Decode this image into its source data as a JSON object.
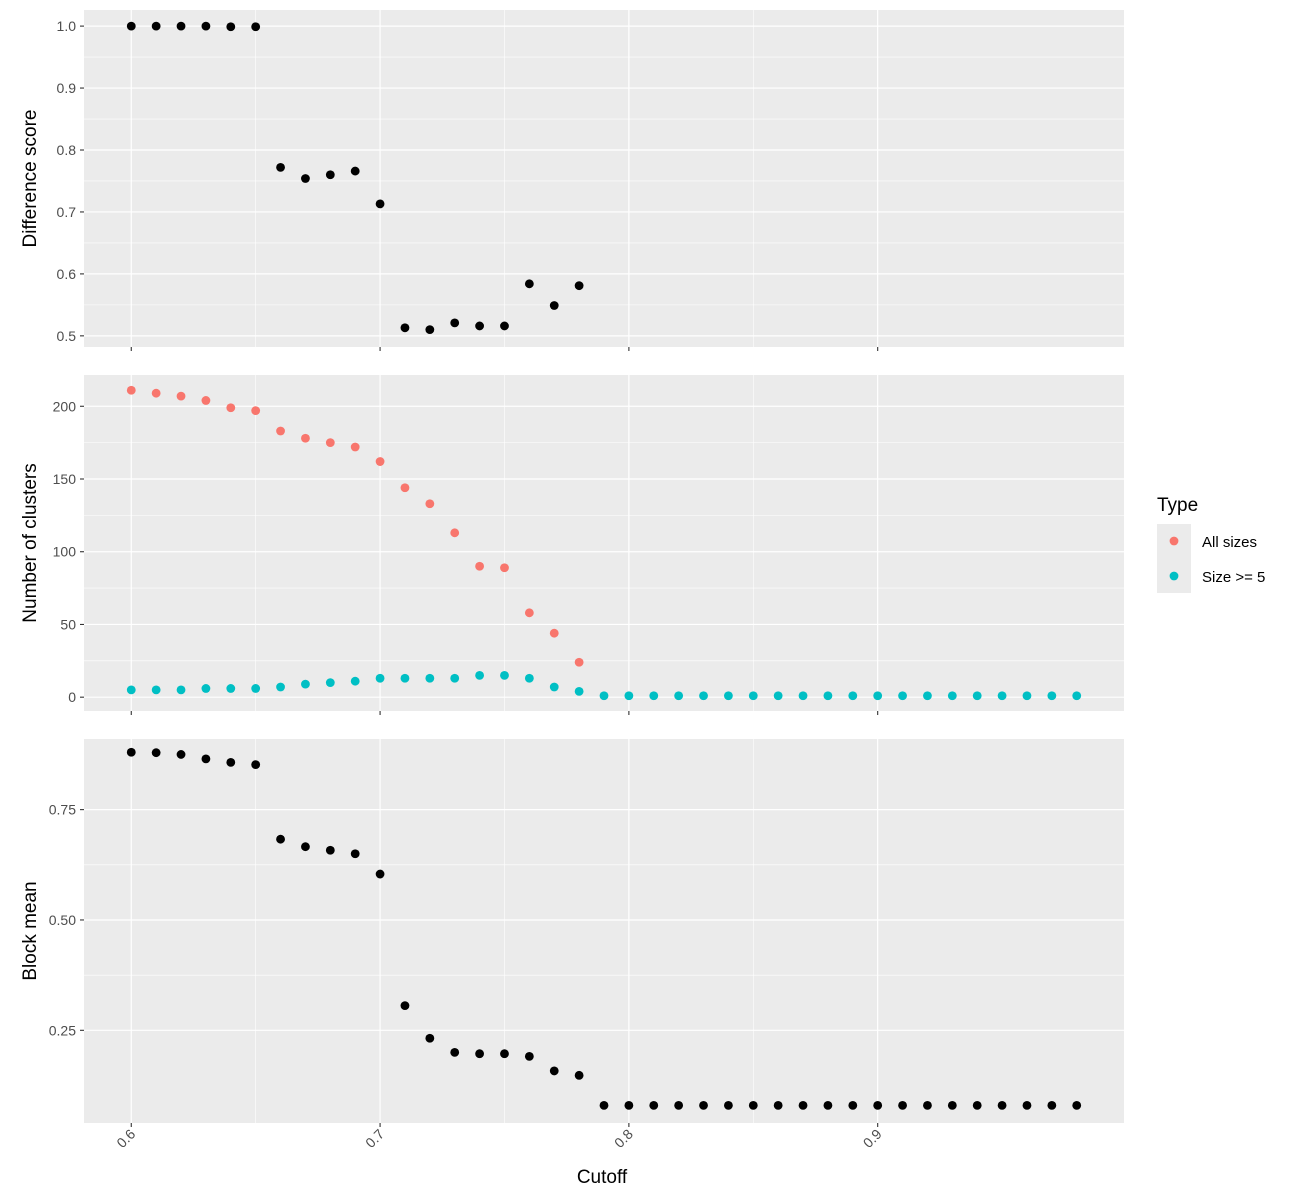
{
  "chart_data": {
    "type": "scatter",
    "xlabel": "Cutoff",
    "x_ticks": [
      "0.6",
      "0.7",
      "0.8",
      "0.9"
    ],
    "xlim": [
      0.581,
      0.999
    ],
    "legend": {
      "title": "Type",
      "position": "right",
      "entries": [
        {
          "label": "All sizes",
          "color": "#F8766D"
        },
        {
          "label": "Size >= 5",
          "color": "#00BFC4"
        }
      ]
    },
    "panels": [
      {
        "ylabel": "Difference score",
        "ylim": [
          0.482,
          1.026
        ],
        "y_ticks": [
          "0.5",
          "0.6",
          "0.7",
          "0.8",
          "0.9",
          "1.0"
        ],
        "grid": true,
        "series": [
          {
            "color": "#000000",
            "x": [
              0.6,
              0.61,
              0.62,
              0.63,
              0.64,
              0.65,
              0.66,
              0.67,
              0.68,
              0.69,
              0.7,
              0.71,
              0.72,
              0.73,
              0.74,
              0.75,
              0.76,
              0.77,
              0.78
            ],
            "y": [
              1.0,
              1.0,
              1.0,
              1.0,
              0.999,
              0.999,
              0.772,
              0.754,
              0.76,
              0.766,
              0.713,
              0.513,
              0.51,
              0.521,
              0.516,
              0.516,
              0.584,
              0.549,
              0.581
            ]
          }
        ]
      },
      {
        "ylabel": "Number of clusters",
        "ylim": [
          -9.5,
          221.5
        ],
        "y_ticks": [
          "0",
          "50",
          "100",
          "150",
          "200"
        ],
        "grid": true,
        "series": [
          {
            "name": "All sizes",
            "color": "#F8766D",
            "x": [
              0.6,
              0.61,
              0.62,
              0.63,
              0.64,
              0.65,
              0.66,
              0.67,
              0.68,
              0.69,
              0.7,
              0.71,
              0.72,
              0.73,
              0.74,
              0.75,
              0.76,
              0.77,
              0.78
            ],
            "y": [
              211,
              209,
              207,
              204,
              199,
              197,
              183,
              178,
              175,
              172,
              162,
              144,
              133,
              113,
              90,
              89,
              58,
              44,
              24
            ]
          },
          {
            "name": "Size >= 5",
            "color": "#00BFC4",
            "x": [
              0.6,
              0.61,
              0.62,
              0.63,
              0.64,
              0.65,
              0.66,
              0.67,
              0.68,
              0.69,
              0.7,
              0.71,
              0.72,
              0.73,
              0.74,
              0.75,
              0.76,
              0.77,
              0.78,
              0.79,
              0.8,
              0.81,
              0.82,
              0.83,
              0.84,
              0.85,
              0.86,
              0.87,
              0.88,
              0.89,
              0.9,
              0.91,
              0.92,
              0.93,
              0.94,
              0.95,
              0.96,
              0.97,
              0.98
            ],
            "y": [
              5,
              5,
              5,
              6,
              6,
              6,
              7,
              9,
              10,
              11,
              13,
              13,
              13,
              13,
              15,
              15,
              13,
              7,
              4,
              1,
              1,
              1,
              1,
              1,
              1,
              1,
              1,
              1,
              1,
              1,
              1,
              1,
              1,
              1,
              1,
              1,
              1,
              1,
              1
            ]
          }
        ]
      },
      {
        "ylabel": "Block mean",
        "ylim": [
          0.04,
          0.91
        ],
        "y_ticks": [
          "0.25",
          "0.50",
          "0.75"
        ],
        "y_tick_values": [
          0.25,
          0.5,
          0.75
        ],
        "grid": true,
        "series": [
          {
            "color": "#000000",
            "x": [
              0.6,
              0.61,
              0.62,
              0.63,
              0.64,
              0.65,
              0.66,
              0.67,
              0.68,
              0.69,
              0.7,
              0.71,
              0.72,
              0.73,
              0.74,
              0.75,
              0.76,
              0.77,
              0.78,
              0.79,
              0.8,
              0.81,
              0.82,
              0.83,
              0.84,
              0.85,
              0.86,
              0.87,
              0.88,
              0.89,
              0.9,
              0.91,
              0.92,
              0.93,
              0.94,
              0.95,
              0.96,
              0.97,
              0.98
            ],
            "y": [
              0.88,
              0.879,
              0.875,
              0.865,
              0.857,
              0.852,
              0.683,
              0.666,
              0.658,
              0.65,
              0.604,
              0.306,
              0.232,
              0.2,
              0.197,
              0.197,
              0.191,
              0.158,
              0.148,
              0.08,
              0.08,
              0.08,
              0.08,
              0.08,
              0.08,
              0.08,
              0.08,
              0.08,
              0.08,
              0.08,
              0.08,
              0.08,
              0.08,
              0.08,
              0.08,
              0.08,
              0.08,
              0.08,
              0.08
            ]
          }
        ]
      }
    ]
  }
}
